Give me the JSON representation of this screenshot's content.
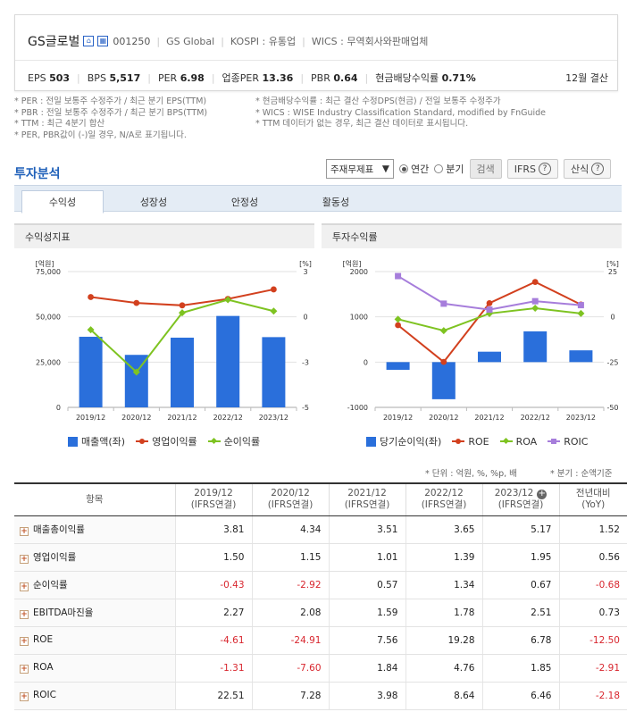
{
  "header": {
    "company_name": "GS글로벌",
    "code": "001250",
    "eng_name": "GS Global",
    "market": "KOSPI : 유통업",
    "wics": "WICS : 무역회사와판매업체",
    "icon1": "home-icon",
    "icon2": "building-icon",
    "stats": [
      {
        "label": "EPS",
        "value": "503"
      },
      {
        "label": "BPS",
        "value": "5,517"
      },
      {
        "label": "PER",
        "value": "6.98"
      },
      {
        "label": "업종PER",
        "value": "13.36"
      },
      {
        "label": "PBR",
        "value": "0.64"
      },
      {
        "label": "현금배당수익률",
        "value": "0.71%"
      }
    ],
    "settlement": "12월 결산"
  },
  "notes": {
    "left": [
      "* PER : 전일 보통주 수정주가 / 최근 분기 EPS(TTM)",
      "* PBR : 전일 보통주 수정주가 / 최근 분기 BPS(TTM)",
      "* TTM : 최근 4분기 합산",
      "* PER, PBR값이 (-)일 경우, N/A로 표기됩니다."
    ],
    "right": [
      "* 현금배당수익률 : 최근 결산 수정DPS(현금) / 전일 보통주 수정주가",
      "* WICS : WISE Industry Classification Standard, modified by FnGuide",
      "* TTM 데이터가 없는 경우, 최근 결산 데이터로 표시됩니다."
    ]
  },
  "analysis": {
    "title": "투자분석",
    "select_value": "주재무제표",
    "radio_annual": "연간",
    "radio_quarter": "분기",
    "search_btn": "검색",
    "ifrs_btn": "IFRS",
    "formula_btn": "산식",
    "tabs": [
      "수익성",
      "성장성",
      "안정성",
      "활동성"
    ]
  },
  "chart_left": {
    "header": "수익성지표",
    "left_unit": "[억원]",
    "right_unit": "[%]",
    "legend": [
      "매출액(좌)",
      "영업이익률",
      "순이익률"
    ]
  },
  "chart_right": {
    "header": "투자수익률",
    "left_unit": "[억원]",
    "right_unit": "[%]",
    "legend": [
      "당기순이익(좌)",
      "ROE",
      "ROA",
      "ROIC"
    ]
  },
  "colors": {
    "bar": "#2a6fdb",
    "op_margin": "#d2401e",
    "net_margin": "#7ec321",
    "roic": "#a67ddb",
    "accent": "#1f60b9"
  },
  "chart_data": [
    {
      "type": "bar",
      "title": "수익성지표",
      "categories": [
        "2019/12",
        "2020/12",
        "2021/12",
        "2022/12",
        "2023/12"
      ],
      "series": [
        {
          "name": "매출액(좌)",
          "type": "bar",
          "axis": "left",
          "values": [
            39000,
            29000,
            38500,
            50500,
            38800
          ]
        },
        {
          "name": "영업이익률",
          "type": "line",
          "axis": "right",
          "values": [
            1.5,
            1.15,
            1.01,
            1.39,
            1.95
          ]
        },
        {
          "name": "순이익률",
          "type": "line",
          "axis": "right",
          "values": [
            -0.43,
            -2.92,
            0.57,
            1.34,
            0.67
          ]
        }
      ],
      "ylabel_left": "[억원]",
      "ylabel_right": "[%]",
      "ylim_left": [
        0,
        75000
      ],
      "ylim_right": [
        -5,
        3
      ],
      "yticks_left": [
        "75,000",
        "50,000",
        "25,000",
        "0"
      ],
      "yticks_right": [
        "3",
        "0",
        "-3",
        "-5"
      ],
      "grid": true,
      "legend_position": "bottom"
    },
    {
      "type": "bar",
      "title": "투자수익률",
      "categories": [
        "2019/12",
        "2020/12",
        "2021/12",
        "2022/12",
        "2023/12"
      ],
      "series": [
        {
          "name": "당기순이익(좌)",
          "type": "bar",
          "axis": "left",
          "values": [
            -170,
            -820,
            230,
            680,
            260
          ]
        },
        {
          "name": "ROE",
          "type": "line",
          "axis": "right",
          "values": [
            -4.61,
            -24.91,
            7.56,
            19.28,
            6.78
          ]
        },
        {
          "name": "ROA",
          "type": "line",
          "axis": "right",
          "values": [
            -1.31,
            -7.6,
            1.84,
            4.76,
            1.85
          ]
        },
        {
          "name": "ROIC",
          "type": "line",
          "axis": "right",
          "values": [
            22.51,
            7.28,
            3.98,
            8.64,
            6.46
          ]
        }
      ],
      "ylabel_left": "[억원]",
      "ylabel_right": "[%]",
      "ylim_left": [
        -1000,
        2000
      ],
      "ylim_right": [
        -50,
        25
      ],
      "yticks_left": [
        "2000",
        "1000",
        "0",
        "-1000"
      ],
      "yticks_right": [
        "25",
        "0",
        "-25",
        "-50"
      ],
      "grid": true,
      "legend_position": "bottom"
    }
  ],
  "table": {
    "unit_note": "* 단위 : 억원, %, %p, 배",
    "quarter_note": "* 분기 : 순액기준",
    "headers": [
      {
        "l1": "항목",
        "l2": ""
      },
      {
        "l1": "2019/12",
        "l2": "(IFRS연결)"
      },
      {
        "l1": "2020/12",
        "l2": "(IFRS연결)"
      },
      {
        "l1": "2021/12",
        "l2": "(IFRS연결)"
      },
      {
        "l1": "2022/12",
        "l2": "(IFRS연결)"
      },
      {
        "l1": "2023/12",
        "l2": "(IFRS연결)"
      },
      {
        "l1": "전년대비",
        "l2": "(YoY)"
      }
    ],
    "rows": [
      {
        "label": "매출총이익률",
        "values": [
          "3.81",
          "4.34",
          "3.51",
          "3.65",
          "5.17",
          "1.52"
        ]
      },
      {
        "label": "영업이익률",
        "values": [
          "1.50",
          "1.15",
          "1.01",
          "1.39",
          "1.95",
          "0.56"
        ]
      },
      {
        "label": "순이익률",
        "values": [
          "-0.43",
          "-2.92",
          "0.57",
          "1.34",
          "0.67",
          "-0.68"
        ]
      },
      {
        "label": "EBITDA마진율",
        "values": [
          "2.27",
          "2.08",
          "1.59",
          "1.78",
          "2.51",
          "0.73"
        ]
      },
      {
        "label": "ROE",
        "values": [
          "-4.61",
          "-24.91",
          "7.56",
          "19.28",
          "6.78",
          "-12.50"
        ]
      },
      {
        "label": "ROA",
        "values": [
          "-1.31",
          "-7.60",
          "1.84",
          "4.76",
          "1.85",
          "-2.91"
        ]
      },
      {
        "label": "ROIC",
        "values": [
          "22.51",
          "7.28",
          "3.98",
          "8.64",
          "6.46",
          "-2.18"
        ]
      }
    ]
  }
}
